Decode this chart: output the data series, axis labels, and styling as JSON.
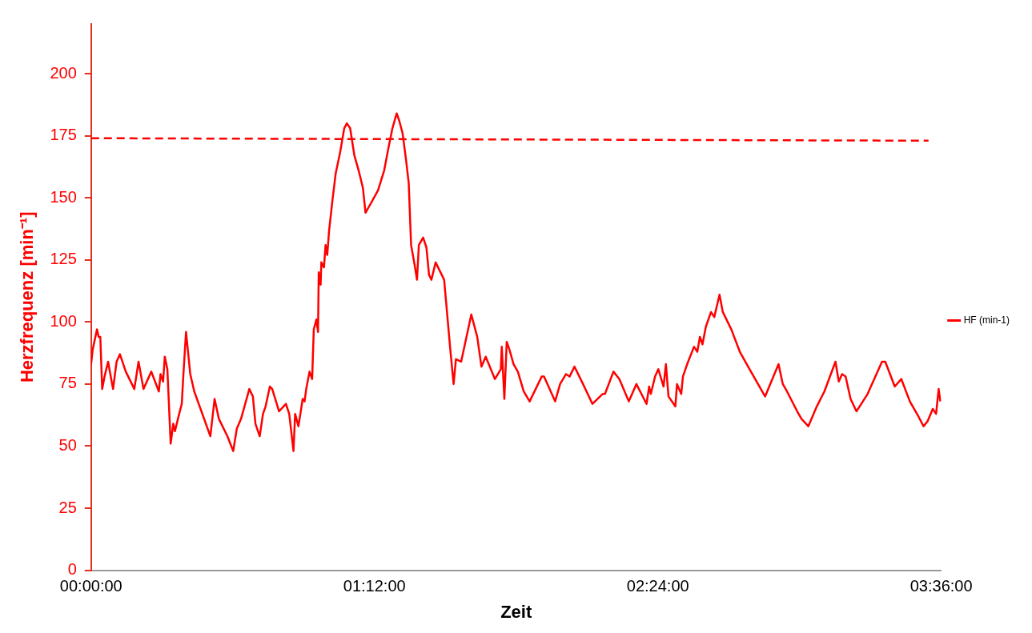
{
  "chart_data": {
    "type": "line",
    "xlabel": "Zeit",
    "ylabel": "Herzfrequenz [min⁻¹]",
    "xlim": [
      0,
      3.6
    ],
    "xticks": [
      {
        "value": 0,
        "label": "00:00:00"
      },
      {
        "value": 1.2,
        "label": "01:12:00"
      },
      {
        "value": 2.4,
        "label": "02:24:00"
      },
      {
        "value": 3.6,
        "label": "03:36:00"
      }
    ],
    "ylim": [
      0,
      220
    ],
    "yticks": [
      0,
      25,
      50,
      75,
      100,
      125,
      150,
      175,
      200
    ],
    "legend": "right",
    "marker": "none",
    "series": [
      {
        "name": "HF (min-1)",
        "color": "#ff0000",
        "line_style": "solid",
        "x": [
          0,
          0.007,
          0.025,
          0.032,
          0.039,
          0.047,
          0.057,
          0.072,
          0.093,
          0.108,
          0.122,
          0.147,
          0.183,
          0.201,
          0.222,
          0.255,
          0.287,
          0.294,
          0.305,
          0.312,
          0.323,
          0.337,
          0.348,
          0.355,
          0.373,
          0.384,
          0.391,
          0.402,
          0.42,
          0.437,
          0.505,
          0.523,
          0.541,
          0.577,
          0.602,
          0.617,
          0.635,
          0.67,
          0.685,
          0.696,
          0.714,
          0.728,
          0.739,
          0.757,
          0.767,
          0.796,
          0.825,
          0.839,
          0.857,
          0.864,
          0.878,
          0.896,
          0.904,
          0.911,
          0.925,
          0.936,
          0.943,
          0.954,
          0.961,
          0.964,
          0.972,
          0.975,
          0.986,
          0.993,
          1.0,
          1.008,
          1.022,
          1.036,
          1.054,
          1.072,
          1.083,
          1.097,
          1.115,
          1.133,
          1.151,
          1.162,
          1.18,
          1.215,
          1.241,
          1.259,
          1.276,
          1.294,
          1.305,
          1.319,
          1.334,
          1.345,
          1.355,
          1.37,
          1.38,
          1.388,
          1.406,
          1.42,
          1.431,
          1.441,
          1.459,
          1.495,
          1.52,
          1.535,
          1.545,
          1.567,
          1.61,
          1.635,
          1.653,
          1.671,
          1.71,
          1.735,
          1.739,
          1.75,
          1.76,
          1.771,
          1.789,
          1.807,
          1.832,
          1.857,
          1.908,
          1.918,
          1.965,
          1.986,
          2.011,
          2.026,
          2.047,
          2.083,
          2.123,
          2.166,
          2.176,
          2.212,
          2.237,
          2.277,
          2.309,
          2.352,
          2.363,
          2.37,
          2.388,
          2.402,
          2.424,
          2.434,
          2.445,
          2.474,
          2.481,
          2.499,
          2.506,
          2.524,
          2.553,
          2.567,
          2.578,
          2.589,
          2.603,
          2.625,
          2.639,
          2.661,
          2.675,
          2.711,
          2.747,
          2.782,
          2.854,
          2.911,
          2.929,
          2.947,
          2.99,
          3.008,
          3.037,
          3.073,
          3.105,
          3.152,
          3.166,
          3.18,
          3.195,
          3.216,
          3.241,
          3.288,
          3.349,
          3.363,
          3.403,
          3.431,
          3.467,
          3.503,
          3.525,
          3.542,
          3.564,
          3.578,
          3.589,
          3.596
        ],
        "values": [
          83,
          89,
          97,
          94,
          94,
          73,
          78,
          84,
          73,
          84,
          87,
          80,
          73,
          84,
          73,
          80,
          72,
          79,
          76,
          86,
          81,
          51,
          59,
          56,
          63,
          67,
          79,
          96,
          79,
          72,
          54,
          69,
          61,
          54,
          48,
          57,
          61,
          73,
          70,
          59,
          54,
          63,
          66,
          74,
          73,
          64,
          67,
          63,
          48,
          63,
          58,
          69,
          68,
          73,
          80,
          77,
          97,
          101,
          96,
          120,
          115,
          124,
          122,
          131,
          127,
          137,
          149,
          160,
          168,
          178,
          180,
          178,
          167,
          161,
          154,
          144,
          147,
          153,
          161,
          170,
          178,
          184,
          181,
          176,
          165,
          156,
          131,
          123,
          117,
          131,
          134,
          130,
          119,
          117,
          124,
          117,
          90,
          75,
          85,
          84,
          103,
          94,
          82,
          86,
          77,
          81,
          90,
          69,
          92,
          89,
          83,
          80,
          72,
          68,
          78,
          78,
          68,
          75,
          79,
          78,
          82,
          75,
          67,
          71,
          71,
          80,
          77,
          68,
          75,
          67,
          74,
          71,
          78,
          81,
          74,
          83,
          70,
          66,
          75,
          71,
          78,
          83,
          90,
          88,
          94,
          91,
          98,
          104,
          102,
          111,
          104,
          97,
          88,
          82,
          70,
          83,
          75,
          72,
          64,
          61,
          58,
          66,
          72,
          84,
          76,
          79,
          78,
          69,
          64,
          71,
          84,
          84,
          74,
          77,
          68,
          62,
          58,
          60,
          65,
          63,
          73,
          68
        ]
      },
      {
        "color": "#ff0000",
        "line_style": "dashed",
        "x": [
          0,
          3.546
        ],
        "values": [
          174,
          173
        ]
      }
    ]
  }
}
